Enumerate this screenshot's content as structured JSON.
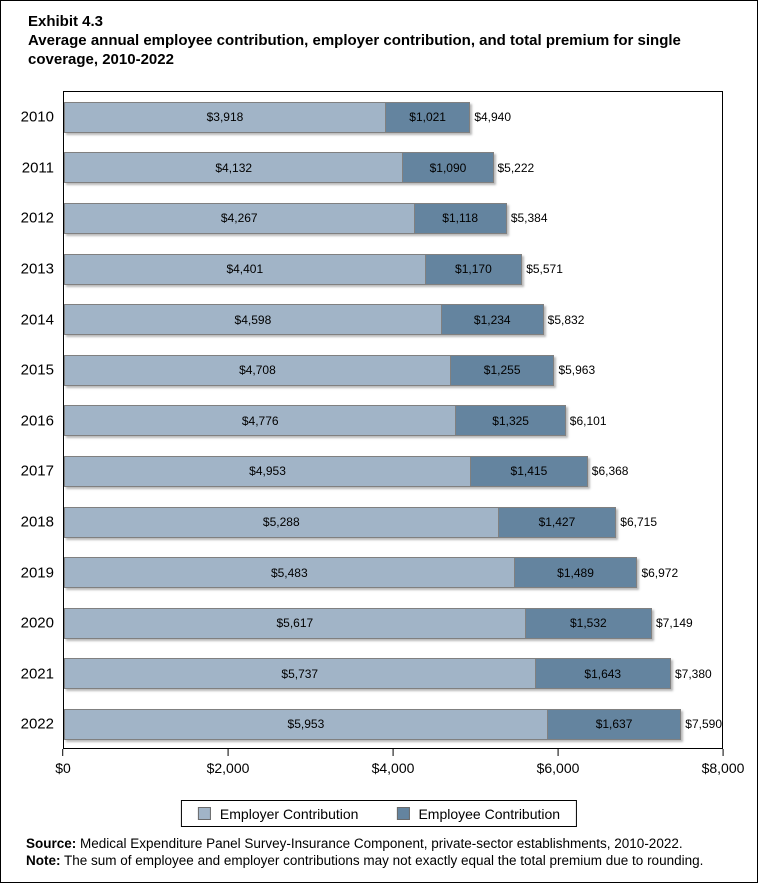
{
  "title": {
    "exhibit": "Exhibit 4.3",
    "text": "Average annual employee contribution, employer contribution, and total premium for single coverage, 2010-2022"
  },
  "chart_data": {
    "type": "bar",
    "orientation": "horizontal",
    "stacked": true,
    "title": "Average annual employee contribution, employer contribution, and total premium for single coverage, 2010-2022",
    "categories": [
      "2010",
      "2011",
      "2012",
      "2013",
      "2014",
      "2015",
      "2016",
      "2017",
      "2018",
      "2019",
      "2020",
      "2021",
      "2022"
    ],
    "series": [
      {
        "name": "Employer Contribution",
        "color": "#a1b4c7",
        "values": [
          3918,
          4132,
          4267,
          4401,
          4598,
          4708,
          4776,
          4953,
          5288,
          5483,
          5617,
          5737,
          5953
        ],
        "labels": [
          "$3,918",
          "$4,132",
          "$4,267",
          "$4,401",
          "$4,598",
          "$4,708",
          "$4,776",
          "$4,953",
          "$5,288",
          "$5,483",
          "$5,617",
          "$5,737",
          "$5,953"
        ]
      },
      {
        "name": "Employee Contribution",
        "color": "#64849f",
        "values": [
          1021,
          1090,
          1118,
          1170,
          1234,
          1255,
          1325,
          1415,
          1427,
          1489,
          1532,
          1643,
          1637
        ],
        "labels": [
          "$1,021",
          "$1,090",
          "$1,118",
          "$1,170",
          "$1,234",
          "$1,255",
          "$1,325",
          "$1,415",
          "$1,427",
          "$1,489",
          "$1,532",
          "$1,643",
          "$1,637"
        ]
      }
    ],
    "totals": [
      4940,
      5222,
      5384,
      5571,
      5832,
      5963,
      6101,
      6368,
      6715,
      6972,
      7149,
      7380,
      7590
    ],
    "total_labels": [
      "$4,940",
      "$5,222",
      "$5,384",
      "$5,571",
      "$5,832",
      "$5,963",
      "$6,101",
      "$6,368",
      "$6,715",
      "$6,972",
      "$7,149",
      "$7,380",
      "$7,590"
    ],
    "xlim": [
      0,
      8000
    ],
    "xticks": [
      0,
      2000,
      4000,
      6000,
      8000
    ],
    "xtick_labels": [
      "$0",
      "$2,000",
      "$4,000",
      "$6,000",
      "$8,000"
    ],
    "grid": false,
    "legend_position": "bottom"
  },
  "legend": {
    "items": [
      {
        "label": "Employer Contribution",
        "color": "#a1b4c7"
      },
      {
        "label": "Employee Contribution",
        "color": "#64849f"
      }
    ]
  },
  "footer": {
    "source_label": "Source:",
    "source_text": " Medical Expenditure Panel Survey-Insurance Component, private-sector establishments, 2010-2022.",
    "note_label": "Note:",
    "note_text": " The sum of employee and employer contributions may not exactly equal the total premium due to rounding."
  }
}
